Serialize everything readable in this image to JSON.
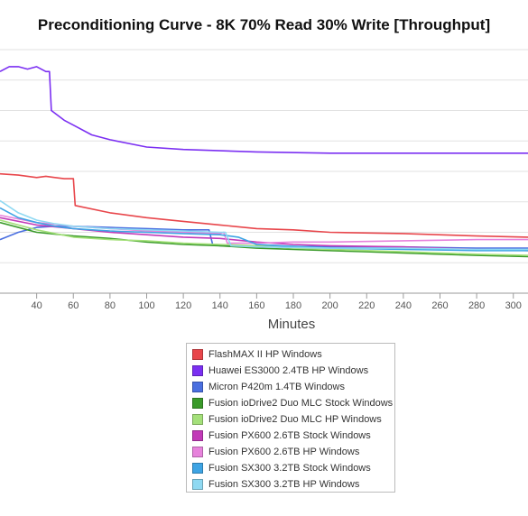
{
  "chart_data": {
    "type": "line",
    "title": "Preconditioning Curve - 8K 70% Read 30% Write [Throughput]",
    "xlabel": "Minutes",
    "ylabel": "",
    "xlim": [
      20,
      308
    ],
    "ylim": [
      0,
      100
    ],
    "x_ticks": [
      40,
      60,
      80,
      100,
      120,
      140,
      160,
      180,
      200,
      220,
      240,
      260,
      280,
      300
    ],
    "grid": true,
    "legend_position": "bottom-center",
    "series": [
      {
        "name": "FlashMAX II HP Windows",
        "color": "#e8464b",
        "x": [
          20,
          30,
          40,
          45,
          50,
          55,
          60,
          61,
          80,
          100,
          120,
          140,
          160,
          180,
          200,
          240,
          280,
          308
        ],
        "y": [
          49,
          48.5,
          47.5,
          48,
          47.5,
          47,
          47,
          36,
          33,
          31,
          29.5,
          28,
          26.5,
          26,
          25,
          24.5,
          23.5,
          23
        ]
      },
      {
        "name": "Huawei ES3000 2.4TB HP Windows",
        "color": "#7b2ff2",
        "x": [
          20,
          25,
          30,
          35,
          40,
          45,
          47,
          48,
          55,
          60,
          70,
          80,
          100,
          120,
          140,
          160,
          200,
          240,
          280,
          308
        ],
        "y": [
          91,
          93,
          93,
          92,
          93,
          91,
          91,
          75,
          71,
          69,
          65,
          63,
          60,
          59,
          58.5,
          58,
          57.5,
          57.5,
          57.5,
          57.5
        ]
      },
      {
        "name": "Micron P420m 1.4TB Windows",
        "color": "#4a6fe0",
        "x": [
          20,
          30,
          40,
          50,
          60,
          80,
          100,
          120,
          134,
          136,
          140,
          160,
          200,
          240,
          280,
          308
        ],
        "y": [
          22,
          25,
          27,
          27.5,
          27.5,
          27,
          26.5,
          26,
          26,
          20,
          19.5,
          19.5,
          19,
          19,
          18.5,
          18.5
        ]
      },
      {
        "name": "Fusion ioDrive2 Duo MLC Stock Windows",
        "color": "#3a9a2a",
        "x": [
          20,
          40,
          60,
          80,
          100,
          120,
          140,
          160,
          180,
          200,
          220,
          240,
          260,
          280,
          308
        ],
        "y": [
          29,
          25,
          23.5,
          22.5,
          21,
          20,
          19.5,
          18.5,
          18,
          17.5,
          17,
          16.5,
          16,
          15.5,
          15
        ]
      },
      {
        "name": "Fusion ioDrive2 Duo MLC HP Windows",
        "color": "#a4e07a",
        "x": [
          20,
          40,
          60,
          80,
          100,
          120,
          140,
          160,
          180,
          200,
          220,
          240,
          260,
          280,
          308
        ],
        "y": [
          30,
          26,
          23,
          22,
          21.5,
          20.5,
          20,
          19.5,
          18.5,
          18,
          17.5,
          17,
          16.5,
          16,
          15.5
        ]
      },
      {
        "name": "Fusion PX600 2.6TB Stock Windows",
        "color": "#c23ab8",
        "x": [
          20,
          40,
          60,
          80,
          100,
          120,
          140,
          160,
          180,
          200,
          240,
          280,
          308
        ],
        "y": [
          31,
          28,
          26.5,
          25,
          24,
          23,
          22.5,
          21,
          20,
          19.5,
          19,
          18,
          17.5
        ]
      },
      {
        "name": "Fusion PX600 2.6TB HP Windows",
        "color": "#e783dc",
        "x": [
          20,
          40,
          60,
          80,
          100,
          120,
          140,
          142,
          144,
          160,
          180,
          200,
          240,
          280,
          308
        ],
        "y": [
          32,
          29,
          27.5,
          26.5,
          25.5,
          25,
          24.5,
          25,
          20.5,
          20.5,
          21,
          21,
          21.5,
          22,
          22
        ]
      },
      {
        "name": "Fusion SX300 3.2TB Stock Windows",
        "color": "#3ea4e4",
        "x": [
          20,
          30,
          40,
          50,
          60,
          80,
          100,
          120,
          140,
          150,
          160,
          200,
          240,
          280,
          308
        ],
        "y": [
          35,
          31,
          29,
          27.5,
          26.5,
          25.5,
          25,
          24.5,
          24,
          23,
          20,
          18.5,
          18,
          17.5,
          17.5
        ]
      },
      {
        "name": "Fusion SX300 3.2TB HP Windows",
        "color": "#8fd9f2",
        "x": [
          20,
          30,
          40,
          50,
          60,
          80,
          100,
          120,
          140,
          143,
          146,
          160,
          200,
          240,
          280,
          308
        ],
        "y": [
          38,
          33,
          30,
          28.5,
          27.5,
          26.5,
          26,
          25.5,
          25,
          25,
          19.5,
          19,
          18.5,
          18.5,
          18,
          18
        ]
      }
    ]
  }
}
